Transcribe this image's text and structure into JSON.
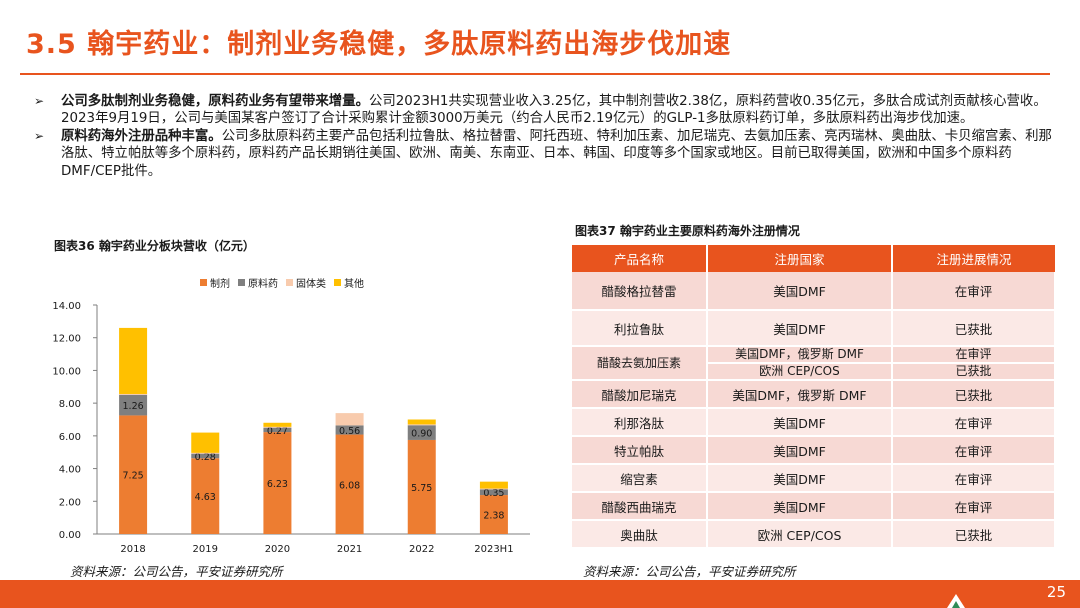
{
  "page": {
    "title": "3.5 翰宇药业：制剂业务稳健，多肽原料药出海步伐加速",
    "page_number": "25",
    "brand_color": "#e8541e"
  },
  "bullets": [
    {
      "bold": "公司多肽制剂业务稳健，原料药业务有望带来增量。",
      "text": "公司2023H1共实现营业收入3.25亿，其中制剂营收2.38亿，原料药营收0.35亿元，多肽合成试剂贡献核心营收。  2023年9月19日，公司与美国某客户签订了合计采购累计金额3000万美元（约合人民币2.19亿元）的GLP-1多肽原料药订单，多肽原料药出海步伐加速。"
    },
    {
      "bold": "原料药海外注册品种丰富。",
      "text": "公司多肽原料药主要产品包括利拉鲁肽、格拉替雷、阿托西班、特利加压素、加尼瑞克、去氨加压素、亮丙瑞林、奥曲肽、卡贝缩宫素、利那洛肽、特立帕肽等多个原料药，原料药产品长期销往美国、欧洲、南美、东南亚、日本、韩国、印度等多个国家或地区。目前已取得美国，欧洲和中国多个原料药DMF/CEP批件。"
    }
  ],
  "chart_title": "图表36 翰宇药业分板块营收（亿元）",
  "chart_source": "资料来源：公司公告，平安证券研究所",
  "table_title": "图表37 翰宇药业主要原料药海外注册情况",
  "table_source": "资料来源：公司公告，平安证券研究所",
  "table": {
    "headers": [
      "产品名称",
      "注册国家",
      "注册进展情况"
    ],
    "rows": [
      {
        "name": "醋酸格拉替雷",
        "country": "美国DMF",
        "status": "在审评"
      },
      {
        "name": "利拉鲁肽",
        "country": "美国DMF",
        "status": "已获批"
      },
      {
        "name": "醋酸去氨加压素",
        "country": "美国DMF，俄罗斯 DMF",
        "status": "在审评",
        "country2": "欧洲 CEP/COS",
        "status2": "已获批"
      },
      {
        "name": "醋酸加尼瑞克",
        "country": "美国DMF，俄罗斯 DMF",
        "status": "已获批"
      },
      {
        "name": "利那洛肽",
        "country": "美国DMF",
        "status": "在审评"
      },
      {
        "name": "特立帕肽",
        "country": "美国DMF",
        "status": "在审评"
      },
      {
        "name": "缩宫素",
        "country": "美国DMF",
        "status": "在审评"
      },
      {
        "name": "醋酸西曲瑞克",
        "country": "美国DMF",
        "status": "在审评"
      },
      {
        "name": "奥曲肽",
        "country": "欧洲 CEP/COS",
        "status": "已获批"
      }
    ]
  },
  "chart_data": {
    "type": "bar",
    "stacked": true,
    "categories": [
      "2018",
      "2019",
      "2020",
      "2021",
      "2022",
      "2023H1"
    ],
    "series": [
      {
        "name": "制剂",
        "color": "#ed7d31",
        "values": [
          7.25,
          4.63,
          6.23,
          6.08,
          5.75,
          2.38
        ],
        "labels": [
          "7.25",
          "4.63",
          "6.23",
          "6.08",
          "5.75",
          "2.38"
        ]
      },
      {
        "name": "原料药",
        "color": "#7f7f7f",
        "values": [
          1.26,
          0.28,
          0.27,
          0.56,
          0.9,
          0.35
        ],
        "labels": [
          "1.26",
          "0.28",
          "0.27",
          "0.56",
          "0.90",
          "0.35"
        ]
      },
      {
        "name": "固体类",
        "color": "#f8cbad",
        "values": [
          0.05,
          0.05,
          0.05,
          0.75,
          0.05,
          0.05
        ],
        "labels": [
          "",
          "",
          "",
          "",
          "",
          ""
        ]
      },
      {
        "name": "其他",
        "color": "#ffc000",
        "values": [
          4.04,
          1.24,
          0.25,
          0.0,
          0.3,
          0.42
        ],
        "labels": [
          "",
          "",
          "",
          "",
          "",
          ""
        ]
      }
    ],
    "yticks": [
      "0.00",
      "2.00",
      "4.00",
      "6.00",
      "8.00",
      "10.00",
      "12.00",
      "14.00"
    ],
    "ylim": [
      0,
      14
    ],
    "legend_position": "top",
    "grid": false
  }
}
